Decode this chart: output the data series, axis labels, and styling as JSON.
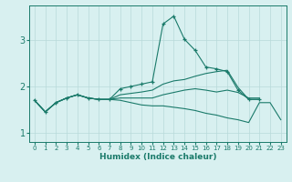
{
  "xlabel": "Humidex (Indice chaleur)",
  "bg_color": "#d8f0f0",
  "grid_color": "#b8dada",
  "line_color": "#1a7a6a",
  "xlim": [
    -0.5,
    23.5
  ],
  "ylim": [
    0.8,
    3.75
  ],
  "yticks": [
    1,
    2,
    3
  ],
  "xticks": [
    0,
    1,
    2,
    3,
    4,
    5,
    6,
    7,
    8,
    9,
    10,
    11,
    12,
    13,
    14,
    15,
    16,
    17,
    18,
    19,
    20,
    21,
    22,
    23
  ],
  "series": [
    {
      "x": [
        0,
        1,
        2,
        3,
        4,
        5,
        6,
        7,
        8,
        9,
        10,
        11,
        12,
        13,
        14,
        15,
        16,
        17,
        18,
        19,
        20,
        21
      ],
      "y": [
        1.7,
        1.45,
        1.65,
        1.75,
        1.82,
        1.75,
        1.72,
        1.72,
        1.95,
        2.0,
        2.05,
        2.1,
        3.35,
        3.52,
        3.02,
        2.78,
        2.42,
        2.38,
        2.32,
        1.92,
        1.72,
        1.72
      ],
      "has_markers": true
    },
    {
      "x": [
        0,
        1,
        2,
        3,
        4,
        5,
        6,
        7,
        8,
        9,
        10,
        11,
        12,
        13,
        14,
        15,
        16,
        17,
        18,
        19,
        20,
        21
      ],
      "y": [
        1.7,
        1.45,
        1.65,
        1.75,
        1.82,
        1.75,
        1.72,
        1.72,
        1.82,
        1.85,
        1.88,
        1.92,
        2.05,
        2.12,
        2.15,
        2.22,
        2.28,
        2.32,
        2.35,
        1.98,
        1.72,
        1.72
      ],
      "has_markers": false
    },
    {
      "x": [
        0,
        1,
        2,
        3,
        4,
        5,
        6,
        7,
        8,
        9,
        10,
        11,
        12,
        13,
        14,
        15,
        16,
        17,
        18,
        19,
        20,
        21
      ],
      "y": [
        1.7,
        1.45,
        1.65,
        1.75,
        1.82,
        1.75,
        1.72,
        1.72,
        1.75,
        1.75,
        1.75,
        1.75,
        1.82,
        1.87,
        1.92,
        1.95,
        1.92,
        1.88,
        1.92,
        1.87,
        1.75,
        1.75
      ],
      "has_markers": false
    },
    {
      "x": [
        0,
        1,
        2,
        3,
        4,
        5,
        6,
        7,
        8,
        9,
        10,
        11,
        12,
        13,
        14,
        15,
        16,
        17,
        18,
        19,
        20,
        21,
        22,
        23
      ],
      "y": [
        1.7,
        1.45,
        1.65,
        1.75,
        1.82,
        1.75,
        1.72,
        1.72,
        1.7,
        1.65,
        1.6,
        1.58,
        1.58,
        1.55,
        1.52,
        1.48,
        1.42,
        1.38,
        1.32,
        1.28,
        1.22,
        1.65,
        1.65,
        1.28
      ],
      "has_markers": false
    }
  ]
}
